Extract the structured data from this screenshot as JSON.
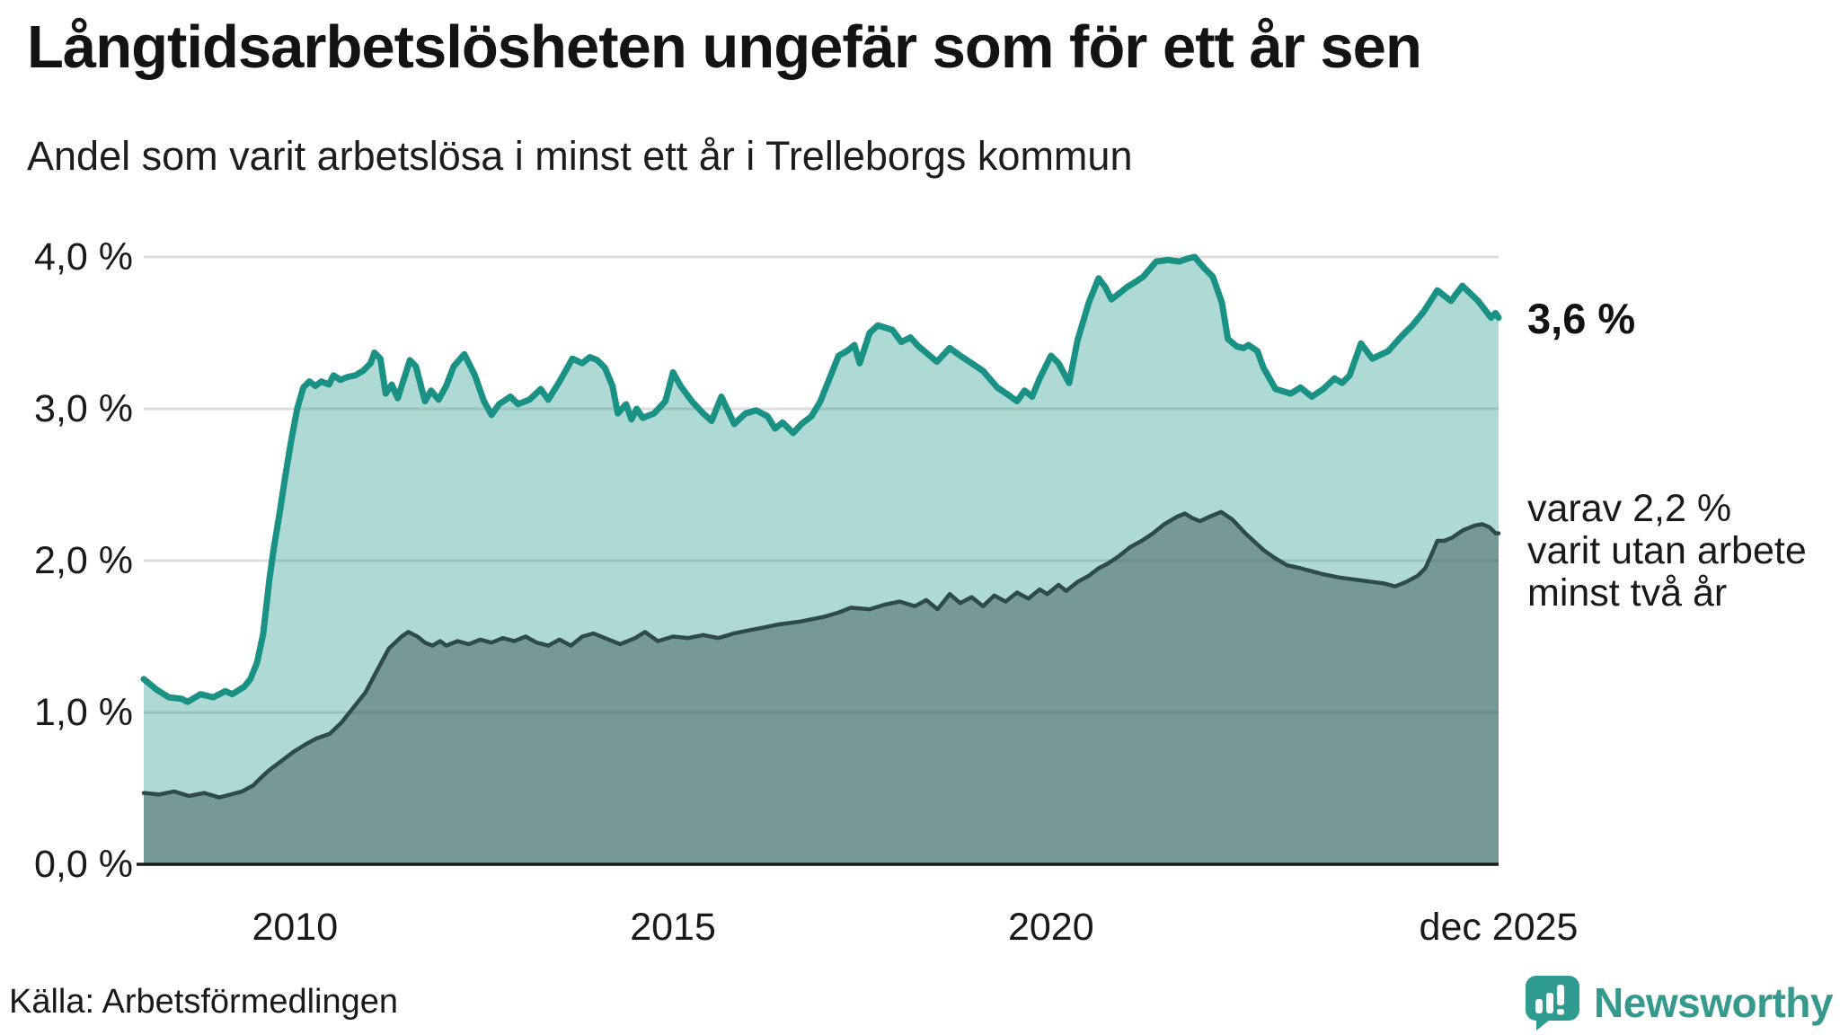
{
  "header": {
    "title": "Långtidsarbetslösheten ungefär som för ett år sen",
    "subtitle": "Andel som varit arbetslösa i minst ett år i Trelleborgs kommun"
  },
  "annotations": {
    "total_end": "3,6 %",
    "two_plus_lines": [
      "varav 2,2 %",
      "varit utan arbete",
      "minst två år"
    ]
  },
  "footer": {
    "source": "Källa: Arbetsförmedlingen",
    "brand": "Newsworthy"
  },
  "colors": {
    "accent_teal": "#199184",
    "teal_fill": "rgba(25,145,132,0.35)",
    "dark_line": "#2e4b47",
    "dark_fill": "rgba(46,75,71,0.45)",
    "gridline": "#dcdcdc",
    "axis": "#1a1a1a",
    "brand_teal": "#35998e",
    "text": "#191919"
  },
  "chart_data": {
    "type": "area",
    "title": "Långtidsarbetslösheten ungefär som för ett år sen",
    "xlabel": "",
    "ylabel": "",
    "unit": "%",
    "grid": "horizontal",
    "legend_position": "right-annotations",
    "x_range": [
      2008.0,
      2025.92
    ],
    "ylim": [
      0,
      4
    ],
    "y_ticks": [
      {
        "value": 4,
        "label": "4,0 %"
      },
      {
        "value": 3,
        "label": "3,0 %"
      },
      {
        "value": 2,
        "label": "2,0 %"
      },
      {
        "value": 1,
        "label": "1,0 %"
      },
      {
        "value": 0,
        "label": "0,0 %"
      }
    ],
    "x_ticks": [
      {
        "value": 2010,
        "label": "2010"
      },
      {
        "value": 2015,
        "label": "2015"
      },
      {
        "value": 2020,
        "label": "2020"
      },
      {
        "value": 2025.92,
        "label": "dec 2025"
      }
    ],
    "series": [
      {
        "name": "Andel som varit arbetslösa i minst ett år",
        "end_value": 3.6,
        "points": [
          [
            2008.0,
            1.22
          ],
          [
            2008.17,
            1.15
          ],
          [
            2008.33,
            1.1
          ],
          [
            2008.5,
            1.09
          ],
          [
            2008.58,
            1.07
          ],
          [
            2008.75,
            1.12
          ],
          [
            2008.92,
            1.1
          ],
          [
            2009.08,
            1.14
          ],
          [
            2009.17,
            1.12
          ],
          [
            2009.33,
            1.17
          ],
          [
            2009.41,
            1.22
          ],
          [
            2009.5,
            1.33
          ],
          [
            2009.58,
            1.52
          ],
          [
            2009.66,
            1.87
          ],
          [
            2009.72,
            2.08
          ],
          [
            2009.79,
            2.29
          ],
          [
            2009.87,
            2.55
          ],
          [
            2009.95,
            2.79
          ],
          [
            2010.03,
            3.0
          ],
          [
            2010.11,
            3.14
          ],
          [
            2010.19,
            3.18
          ],
          [
            2010.27,
            3.15
          ],
          [
            2010.35,
            3.18
          ],
          [
            2010.45,
            3.16
          ],
          [
            2010.51,
            3.22
          ],
          [
            2010.6,
            3.19
          ],
          [
            2010.7,
            3.21
          ],
          [
            2010.8,
            3.22
          ],
          [
            2010.9,
            3.25
          ],
          [
            2011.0,
            3.3
          ],
          [
            2011.05,
            3.37
          ],
          [
            2011.13,
            3.33
          ],
          [
            2011.2,
            3.1
          ],
          [
            2011.28,
            3.16
          ],
          [
            2011.36,
            3.07
          ],
          [
            2011.45,
            3.21
          ],
          [
            2011.52,
            3.32
          ],
          [
            2011.6,
            3.28
          ],
          [
            2011.72,
            3.05
          ],
          [
            2011.8,
            3.12
          ],
          [
            2011.9,
            3.06
          ],
          [
            2012.0,
            3.15
          ],
          [
            2012.1,
            3.28
          ],
          [
            2012.24,
            3.36
          ],
          [
            2012.38,
            3.22
          ],
          [
            2012.5,
            3.05
          ],
          [
            2012.6,
            2.96
          ],
          [
            2012.7,
            3.03
          ],
          [
            2012.85,
            3.08
          ],
          [
            2012.95,
            3.03
          ],
          [
            2013.1,
            3.06
          ],
          [
            2013.25,
            3.13
          ],
          [
            2013.35,
            3.06
          ],
          [
            2013.5,
            3.18
          ],
          [
            2013.67,
            3.33
          ],
          [
            2013.8,
            3.3
          ],
          [
            2013.9,
            3.34
          ],
          [
            2014.0,
            3.32
          ],
          [
            2014.1,
            3.27
          ],
          [
            2014.2,
            3.15
          ],
          [
            2014.27,
            2.97
          ],
          [
            2014.38,
            3.03
          ],
          [
            2014.45,
            2.93
          ],
          [
            2014.52,
            3.0
          ],
          [
            2014.6,
            2.94
          ],
          [
            2014.75,
            2.97
          ],
          [
            2014.9,
            3.05
          ],
          [
            2015.0,
            3.24
          ],
          [
            2015.1,
            3.15
          ],
          [
            2015.25,
            3.05
          ],
          [
            2015.4,
            2.97
          ],
          [
            2015.51,
            2.92
          ],
          [
            2015.64,
            3.08
          ],
          [
            2015.81,
            2.9
          ],
          [
            2015.96,
            2.97
          ],
          [
            2016.1,
            2.99
          ],
          [
            2016.25,
            2.95
          ],
          [
            2016.35,
            2.87
          ],
          [
            2016.45,
            2.91
          ],
          [
            2016.59,
            2.84
          ],
          [
            2016.7,
            2.9
          ],
          [
            2016.83,
            2.95
          ],
          [
            2016.95,
            3.05
          ],
          [
            2017.07,
            3.2
          ],
          [
            2017.19,
            3.35
          ],
          [
            2017.3,
            3.38
          ],
          [
            2017.4,
            3.42
          ],
          [
            2017.47,
            3.3
          ],
          [
            2017.6,
            3.5
          ],
          [
            2017.71,
            3.55
          ],
          [
            2017.9,
            3.52
          ],
          [
            2018.02,
            3.44
          ],
          [
            2018.14,
            3.47
          ],
          [
            2018.25,
            3.41
          ],
          [
            2018.49,
            3.31
          ],
          [
            2018.66,
            3.4
          ],
          [
            2018.8,
            3.35
          ],
          [
            2018.95,
            3.3
          ],
          [
            2019.1,
            3.25
          ],
          [
            2019.29,
            3.14
          ],
          [
            2019.44,
            3.09
          ],
          [
            2019.55,
            3.05
          ],
          [
            2019.65,
            3.12
          ],
          [
            2019.75,
            3.08
          ],
          [
            2019.85,
            3.2
          ],
          [
            2020.0,
            3.35
          ],
          [
            2020.1,
            3.3
          ],
          [
            2020.24,
            3.17
          ],
          [
            2020.35,
            3.45
          ],
          [
            2020.5,
            3.7
          ],
          [
            2020.63,
            3.86
          ],
          [
            2020.72,
            3.8
          ],
          [
            2020.8,
            3.72
          ],
          [
            2020.9,
            3.76
          ],
          [
            2021.0,
            3.8
          ],
          [
            2021.1,
            3.83
          ],
          [
            2021.22,
            3.87
          ],
          [
            2021.39,
            3.97
          ],
          [
            2021.55,
            3.98
          ],
          [
            2021.7,
            3.97
          ],
          [
            2021.81,
            3.99
          ],
          [
            2021.9,
            4.0
          ],
          [
            2022.02,
            3.93
          ],
          [
            2022.14,
            3.87
          ],
          [
            2022.26,
            3.7
          ],
          [
            2022.34,
            3.46
          ],
          [
            2022.46,
            3.41
          ],
          [
            2022.55,
            3.4
          ],
          [
            2022.61,
            3.42
          ],
          [
            2022.73,
            3.38
          ],
          [
            2022.81,
            3.27
          ],
          [
            2022.97,
            3.13
          ],
          [
            2023.17,
            3.1
          ],
          [
            2023.3,
            3.14
          ],
          [
            2023.45,
            3.08
          ],
          [
            2023.6,
            3.13
          ],
          [
            2023.75,
            3.2
          ],
          [
            2023.85,
            3.17
          ],
          [
            2023.95,
            3.22
          ],
          [
            2024.1,
            3.43
          ],
          [
            2024.25,
            3.33
          ],
          [
            2024.46,
            3.38
          ],
          [
            2024.64,
            3.48
          ],
          [
            2024.78,
            3.55
          ],
          [
            2024.93,
            3.64
          ],
          [
            2025.11,
            3.78
          ],
          [
            2025.29,
            3.71
          ],
          [
            2025.44,
            3.81
          ],
          [
            2025.65,
            3.71
          ],
          [
            2025.82,
            3.6
          ],
          [
            2025.88,
            3.63
          ],
          [
            2025.92,
            3.6
          ]
        ]
      },
      {
        "name": "varav varit utan arbete minst två år",
        "end_value": 2.2,
        "points": [
          [
            2008.0,
            0.47
          ],
          [
            2008.2,
            0.46
          ],
          [
            2008.4,
            0.48
          ],
          [
            2008.6,
            0.45
          ],
          [
            2008.8,
            0.47
          ],
          [
            2009.0,
            0.44
          ],
          [
            2009.15,
            0.46
          ],
          [
            2009.3,
            0.48
          ],
          [
            2009.45,
            0.52
          ],
          [
            2009.55,
            0.57
          ],
          [
            2009.66,
            0.62
          ],
          [
            2009.82,
            0.68
          ],
          [
            2009.98,
            0.74
          ],
          [
            2010.14,
            0.79
          ],
          [
            2010.29,
            0.83
          ],
          [
            2010.46,
            0.86
          ],
          [
            2010.61,
            0.93
          ],
          [
            2010.77,
            1.03
          ],
          [
            2010.93,
            1.13
          ],
          [
            2011.09,
            1.28
          ],
          [
            2011.24,
            1.42
          ],
          [
            2011.41,
            1.5
          ],
          [
            2011.5,
            1.53
          ],
          [
            2011.62,
            1.5
          ],
          [
            2011.72,
            1.46
          ],
          [
            2011.82,
            1.44
          ],
          [
            2011.92,
            1.47
          ],
          [
            2012.0,
            1.44
          ],
          [
            2012.15,
            1.47
          ],
          [
            2012.3,
            1.45
          ],
          [
            2012.45,
            1.48
          ],
          [
            2012.6,
            1.46
          ],
          [
            2012.75,
            1.49
          ],
          [
            2012.9,
            1.47
          ],
          [
            2013.05,
            1.5
          ],
          [
            2013.2,
            1.46
          ],
          [
            2013.35,
            1.44
          ],
          [
            2013.5,
            1.48
          ],
          [
            2013.65,
            1.44
          ],
          [
            2013.8,
            1.5
          ],
          [
            2013.95,
            1.52
          ],
          [
            2014.1,
            1.49
          ],
          [
            2014.3,
            1.45
          ],
          [
            2014.5,
            1.49
          ],
          [
            2014.63,
            1.53
          ],
          [
            2014.8,
            1.47
          ],
          [
            2015.0,
            1.5
          ],
          [
            2015.2,
            1.49
          ],
          [
            2015.4,
            1.51
          ],
          [
            2015.6,
            1.49
          ],
          [
            2015.8,
            1.52
          ],
          [
            2016.0,
            1.54
          ],
          [
            2016.2,
            1.56
          ],
          [
            2016.4,
            1.58
          ],
          [
            2016.7,
            1.6
          ],
          [
            2017.0,
            1.63
          ],
          [
            2017.2,
            1.66
          ],
          [
            2017.35,
            1.69
          ],
          [
            2017.6,
            1.68
          ],
          [
            2017.8,
            1.71
          ],
          [
            2018.0,
            1.73
          ],
          [
            2018.2,
            1.7
          ],
          [
            2018.35,
            1.74
          ],
          [
            2018.5,
            1.68
          ],
          [
            2018.66,
            1.78
          ],
          [
            2018.8,
            1.72
          ],
          [
            2018.95,
            1.76
          ],
          [
            2019.1,
            1.7
          ],
          [
            2019.25,
            1.77
          ],
          [
            2019.4,
            1.73
          ],
          [
            2019.55,
            1.79
          ],
          [
            2019.7,
            1.75
          ],
          [
            2019.85,
            1.81
          ],
          [
            2019.95,
            1.78
          ],
          [
            2020.1,
            1.84
          ],
          [
            2020.2,
            1.8
          ],
          [
            2020.35,
            1.86
          ],
          [
            2020.5,
            1.9
          ],
          [
            2020.63,
            1.95
          ],
          [
            2020.75,
            1.98
          ],
          [
            2020.9,
            2.03
          ],
          [
            2021.05,
            2.09
          ],
          [
            2021.2,
            2.13
          ],
          [
            2021.35,
            2.18
          ],
          [
            2021.5,
            2.24
          ],
          [
            2021.67,
            2.29
          ],
          [
            2021.77,
            2.31
          ],
          [
            2021.87,
            2.28
          ],
          [
            2021.97,
            2.26
          ],
          [
            2022.1,
            2.29
          ],
          [
            2022.25,
            2.32
          ],
          [
            2022.4,
            2.27
          ],
          [
            2022.57,
            2.18
          ],
          [
            2022.7,
            2.12
          ],
          [
            2022.81,
            2.07
          ],
          [
            2022.95,
            2.02
          ],
          [
            2023.12,
            1.97
          ],
          [
            2023.3,
            1.95
          ],
          [
            2023.45,
            1.93
          ],
          [
            2023.6,
            1.91
          ],
          [
            2023.8,
            1.89
          ],
          [
            2023.95,
            1.88
          ],
          [
            2024.1,
            1.87
          ],
          [
            2024.25,
            1.86
          ],
          [
            2024.4,
            1.85
          ],
          [
            2024.55,
            1.83
          ],
          [
            2024.7,
            1.86
          ],
          [
            2024.85,
            1.9
          ],
          [
            2024.95,
            1.95
          ],
          [
            2025.05,
            2.06
          ],
          [
            2025.11,
            2.13
          ],
          [
            2025.2,
            2.13
          ],
          [
            2025.3,
            2.15
          ],
          [
            2025.45,
            2.2
          ],
          [
            2025.6,
            2.23
          ],
          [
            2025.7,
            2.24
          ],
          [
            2025.8,
            2.22
          ],
          [
            2025.88,
            2.18
          ],
          [
            2025.92,
            2.18
          ]
        ]
      }
    ]
  }
}
